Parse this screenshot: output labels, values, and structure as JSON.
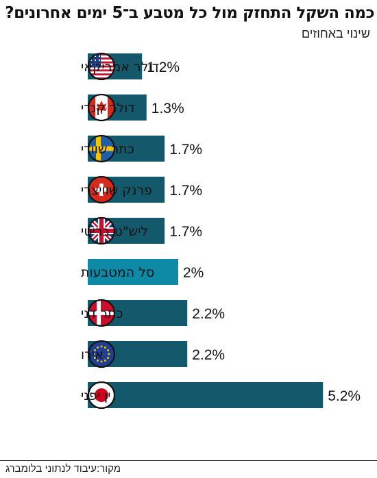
{
  "title": "כמה השקל התחזק מול כל מטבע ב־5 ימים אחרונים?",
  "subtitle": "שינוי באחוזים",
  "source": "מקור:עיבוד לנתוני בלומברג",
  "colors": {
    "bar": "#13586b",
    "highlight_bar": "#0e8aa6"
  },
  "chart_data": {
    "type": "bar",
    "orientation": "horizontal",
    "title": "כמה השקל התחזק מול כל מטבע ב־5 ימים אחרונים?",
    "subtitle": "שינוי באחוזים",
    "xlabel": "",
    "ylabel": "",
    "categories": [
      "דולר אמריקאי",
      "דולר קנדי",
      "כתר שוודי",
      "פרנק שוויצרי",
      "ליש\"ט בריטי",
      "סל המטבעות",
      "כתר דני",
      "אירו",
      "ין יפני"
    ],
    "values": [
      1.2,
      1.3,
      1.7,
      1.7,
      1.7,
      2,
      2.2,
      2.2,
      5.2
    ],
    "value_labels": [
      "1.2%",
      "1.3%",
      "1.7%",
      "1.7%",
      "1.7%",
      "2%",
      "2.2%",
      "2.2%",
      "5.2%"
    ],
    "flags": [
      "us-flag-icon",
      "canada-flag-icon",
      "sweden-flag-icon",
      "switzerland-flag-icon",
      "uk-flag-icon",
      "",
      "denmark-flag-icon",
      "eu-flag-icon",
      "japan-flag-icon"
    ],
    "highlight": [
      "סל המטבעות"
    ],
    "xlim": [
      0,
      5.2
    ],
    "grid": false,
    "legend": "none"
  }
}
